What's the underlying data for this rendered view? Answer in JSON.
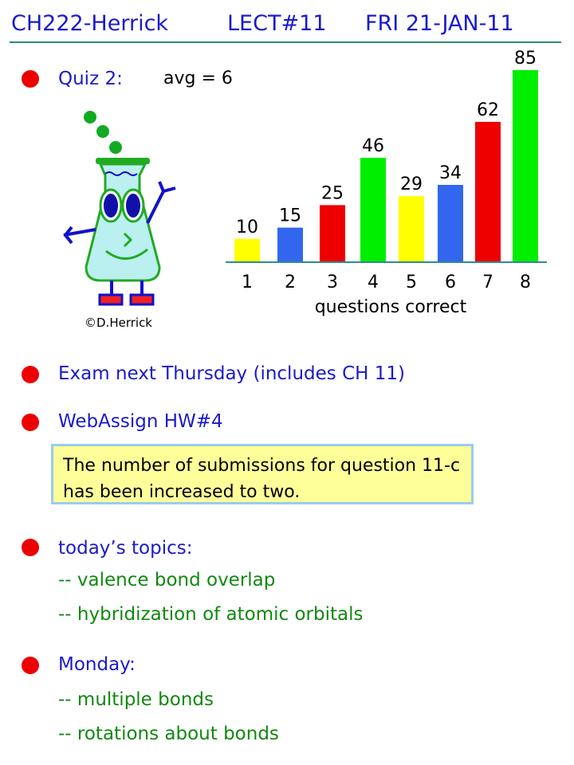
{
  "header": {
    "course": "CH222-Herrick",
    "lecture": "LECT#11",
    "date": "FRI 21-JAN-11"
  },
  "quiz": {
    "label": "Quiz 2:",
    "avg": "avg = 6"
  },
  "image": {
    "caption": "©D.Herrick"
  },
  "items": {
    "exam": "Exam next Thursday (includes CH 11)",
    "webassign": "WebAssign HW#4",
    "note": "The number of submissions for question 11-c has been increased to two.",
    "topics": "today’s topics:",
    "topic1": "-- valence bond overlap",
    "topic2": "-- hybridization of atomic orbitals",
    "monday": "Monday:",
    "monday1": "-- multiple bonds",
    "monday2": "-- rotations about bonds"
  },
  "colors": {
    "bullet": "#ee0000",
    "text_blue": "#1a1acc",
    "text_green": "#118811"
  },
  "chart_data": {
    "type": "bar",
    "categories": [
      "1",
      "2",
      "3",
      "4",
      "5",
      "6",
      "7",
      "8"
    ],
    "values": [
      10,
      15,
      25,
      46,
      29,
      34,
      62,
      85
    ],
    "colors": [
      "#ffff00",
      "#3366ee",
      "#ee0000",
      "#00ee00",
      "#ffff00",
      "#3366ee",
      "#ee0000",
      "#00ee00"
    ],
    "xlabel": "questions correct",
    "ylabel": "",
    "title": "",
    "grid": false
  }
}
